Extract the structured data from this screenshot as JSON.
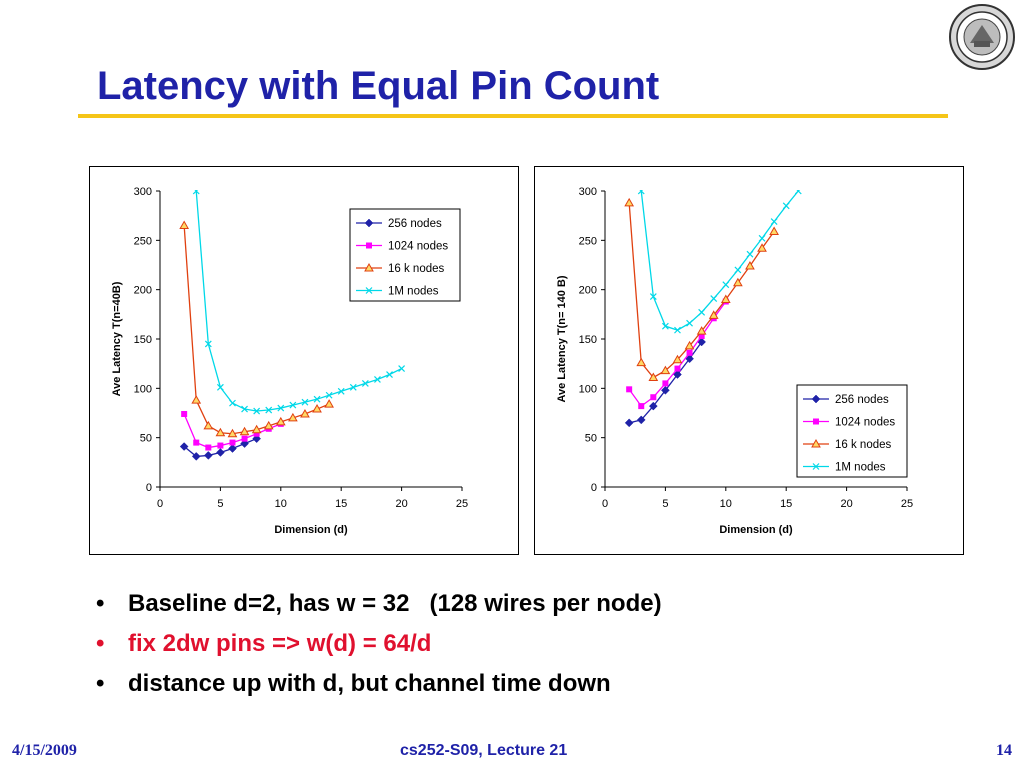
{
  "slide": {
    "title": "Latency with Equal Pin Count",
    "bullets": [
      {
        "text": "Baseline d=2, has w = 32   (128 wires per node)",
        "color": "#000000"
      },
      {
        "text": "fix 2dw pins => w(d) = 64/d",
        "color": "#e0102e"
      },
      {
        "text": "distance up with d, but channel time down",
        "color": "#000000"
      }
    ],
    "bullet_glyph": "•",
    "footer": {
      "date": "4/15/2009",
      "course": "cs252-S09, Lecture 21",
      "page": "14"
    },
    "logo_icon": "university-seal-icon"
  },
  "chart_data": [
    {
      "type": "line",
      "title": "",
      "xlabel": "Dimension (d)",
      "ylabel": "Ave Latency T(n=40B)",
      "xlim": [
        0,
        25
      ],
      "ylim": [
        0,
        300
      ],
      "xticks": [
        0,
        5,
        10,
        15,
        20,
        25
      ],
      "yticks": [
        0,
        50,
        100,
        150,
        200,
        250,
        300
      ],
      "grid": false,
      "legend": "top-right",
      "series": [
        {
          "name": "256 nodes",
          "marker": "diamond",
          "color": "#1f22a8",
          "x": [
            2,
            3,
            4,
            5,
            6,
            7,
            8
          ],
          "y": [
            41,
            31,
            32,
            35,
            39,
            44,
            49
          ]
        },
        {
          "name": "1024 nodes",
          "marker": "square",
          "color": "#ff00ff",
          "x": [
            2,
            3,
            4,
            5,
            6,
            7,
            8,
            9,
            10
          ],
          "y": [
            74,
            45,
            40,
            42,
            45,
            49,
            54,
            59,
            64
          ]
        },
        {
          "name": "16 k nodes",
          "marker": "triangle",
          "color": "#e04010",
          "x": [
            2,
            3,
            4,
            5,
            6,
            7,
            8,
            9,
            10,
            11,
            12,
            13,
            14
          ],
          "y": [
            265,
            88,
            62,
            55,
            54,
            56,
            58,
            62,
            66,
            70,
            74,
            79,
            84
          ]
        },
        {
          "name": "1M nodes",
          "marker": "x",
          "color": "#00d8e8",
          "x": [
            3,
            4,
            5,
            6,
            7,
            8,
            9,
            10,
            11,
            12,
            13,
            14,
            15,
            16,
            17,
            18,
            19,
            20
          ],
          "y": [
            300,
            145,
            101,
            85,
            79,
            77,
            78,
            80,
            83,
            86,
            89,
            93,
            97,
            101,
            105,
            109,
            114,
            120
          ]
        }
      ]
    },
    {
      "type": "line",
      "title": "",
      "xlabel": "Dimension (d)",
      "ylabel": "Ave Latency T(n= 140 B)",
      "xlim": [
        0,
        25
      ],
      "ylim": [
        0,
        300
      ],
      "xticks": [
        0,
        5,
        10,
        15,
        20,
        25
      ],
      "yticks": [
        0,
        50,
        100,
        150,
        200,
        250,
        300
      ],
      "grid": false,
      "legend": "bottom-right",
      "series": [
        {
          "name": "256 nodes",
          "marker": "diamond",
          "color": "#1f22a8",
          "x": [
            2,
            3,
            4,
            5,
            6,
            7,
            8
          ],
          "y": [
            65,
            68,
            82,
            98,
            114,
            130,
            147
          ]
        },
        {
          "name": "1024 nodes",
          "marker": "square",
          "color": "#ff00ff",
          "x": [
            2,
            3,
            4,
            5,
            6,
            7,
            8,
            9,
            10
          ],
          "y": [
            99,
            82,
            91,
            105,
            120,
            136,
            153,
            171,
            188
          ]
        },
        {
          "name": "16 k nodes",
          "marker": "triangle",
          "color": "#e04010",
          "x": [
            2,
            3,
            4,
            5,
            6,
            7,
            8,
            9,
            10,
            11,
            12,
            13,
            14
          ],
          "y": [
            288,
            126,
            111,
            118,
            129,
            143,
            158,
            174,
            190,
            207,
            224,
            242,
            259
          ]
        },
        {
          "name": "1M nodes",
          "marker": "x",
          "color": "#00d8e8",
          "x": [
            3,
            4,
            5,
            6,
            7,
            8,
            9,
            10,
            11,
            12,
            13,
            14,
            15,
            16
          ],
          "y": [
            300,
            193,
            163,
            159,
            166,
            177,
            191,
            205,
            220,
            236,
            252,
            269,
            285,
            300
          ]
        }
      ]
    }
  ]
}
